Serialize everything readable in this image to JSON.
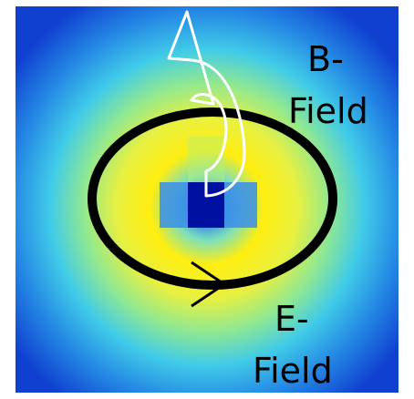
{
  "diagram": {
    "labels": {
      "b_field": [
        "B-",
        "Field"
      ],
      "e_field": [
        "E-",
        "Field"
      ]
    },
    "colors": {
      "background": "#ffffff",
      "field_low": "#1040d0",
      "field_mid": "#35c8e8",
      "field_high": "#ffe800",
      "field_core": "#0010a0",
      "e_field_loop": "#000000",
      "b_field_arrow_stroke": "#ffffff",
      "label_text": "#000000"
    }
  }
}
